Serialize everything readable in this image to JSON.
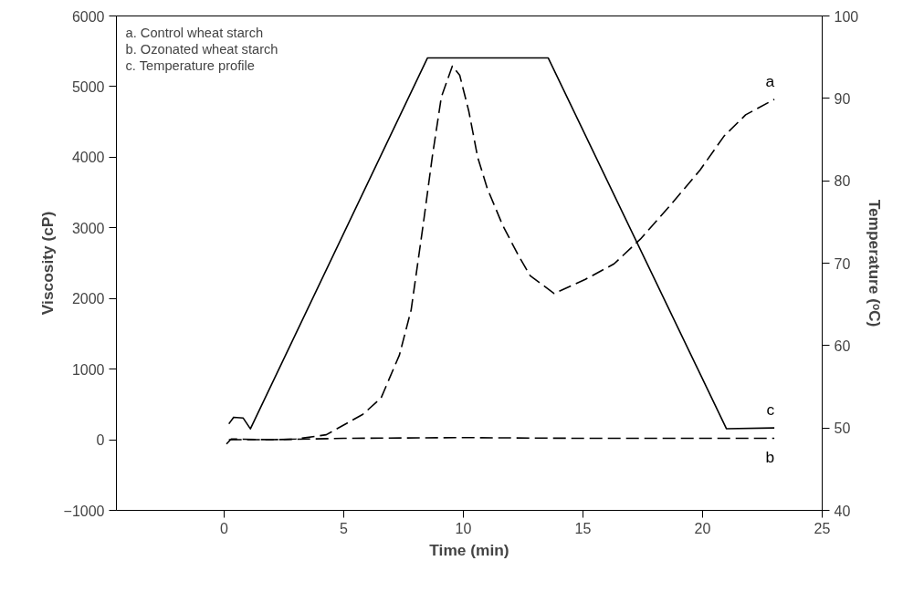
{
  "chart_data": {
    "type": "line",
    "xlabel": "Time (min)",
    "ylabel": "Viscosity (cP)",
    "y2label": "Temperature (ᵒC)",
    "xlim": [
      -4.5,
      25
    ],
    "xticks": [
      0,
      5,
      10,
      15,
      20,
      25
    ],
    "ylim": [
      -1000,
      6000
    ],
    "yticks": [
      -1000,
      0,
      1000,
      2000,
      3000,
      4000,
      5000,
      6000
    ],
    "y2lim": [
      40,
      100
    ],
    "y2ticks": [
      40,
      50,
      60,
      70,
      80,
      90,
      100
    ],
    "grid": false,
    "annotations": [
      "a. Control wheat starch",
      "b. Ozonated wheat starch",
      "c. Temperature profile"
    ],
    "series": [
      {
        "name": "a",
        "color": "#000000",
        "line_style": "dashed",
        "x": [
          0.2,
          1,
          2,
          3,
          4.27,
          5.8,
          6.56,
          7.33,
          7.82,
          8.32,
          8.7,
          9.08,
          9.54,
          9.85,
          10.23,
          10.6,
          11.0,
          11.64,
          12.3,
          12.8,
          13.8,
          15.1,
          16.3,
          17.4,
          18.6,
          19.9,
          20.9,
          21.8,
          23.0
        ],
        "values": [
          0,
          0,
          0,
          10,
          70,
          360,
          590,
          1200,
          1840,
          3040,
          4000,
          4850,
          5290,
          5160,
          4650,
          4000,
          3560,
          3040,
          2610,
          2320,
          2070,
          2270,
          2490,
          2840,
          3300,
          3820,
          4300,
          4600,
          4820
        ]
      },
      {
        "name": "b",
        "color": "#000000",
        "line_style": "dashed",
        "x": [
          0.1,
          0.3,
          2,
          5,
          10,
          15,
          20,
          23.0
        ],
        "values": [
          -60,
          10,
          0,
          20,
          30,
          20,
          20,
          20
        ]
      },
      {
        "name": "c",
        "color": "#000000",
        "line_style": "solid",
        "axis": "y2",
        "x": [
          0.2,
          0.4,
          0.8,
          1.1,
          8.5,
          13.55,
          21.0,
          23.0
        ],
        "values": [
          50.5,
          51.3,
          51.2,
          49.9,
          94.9,
          94.9,
          49.9,
          50.0
        ]
      }
    ]
  }
}
